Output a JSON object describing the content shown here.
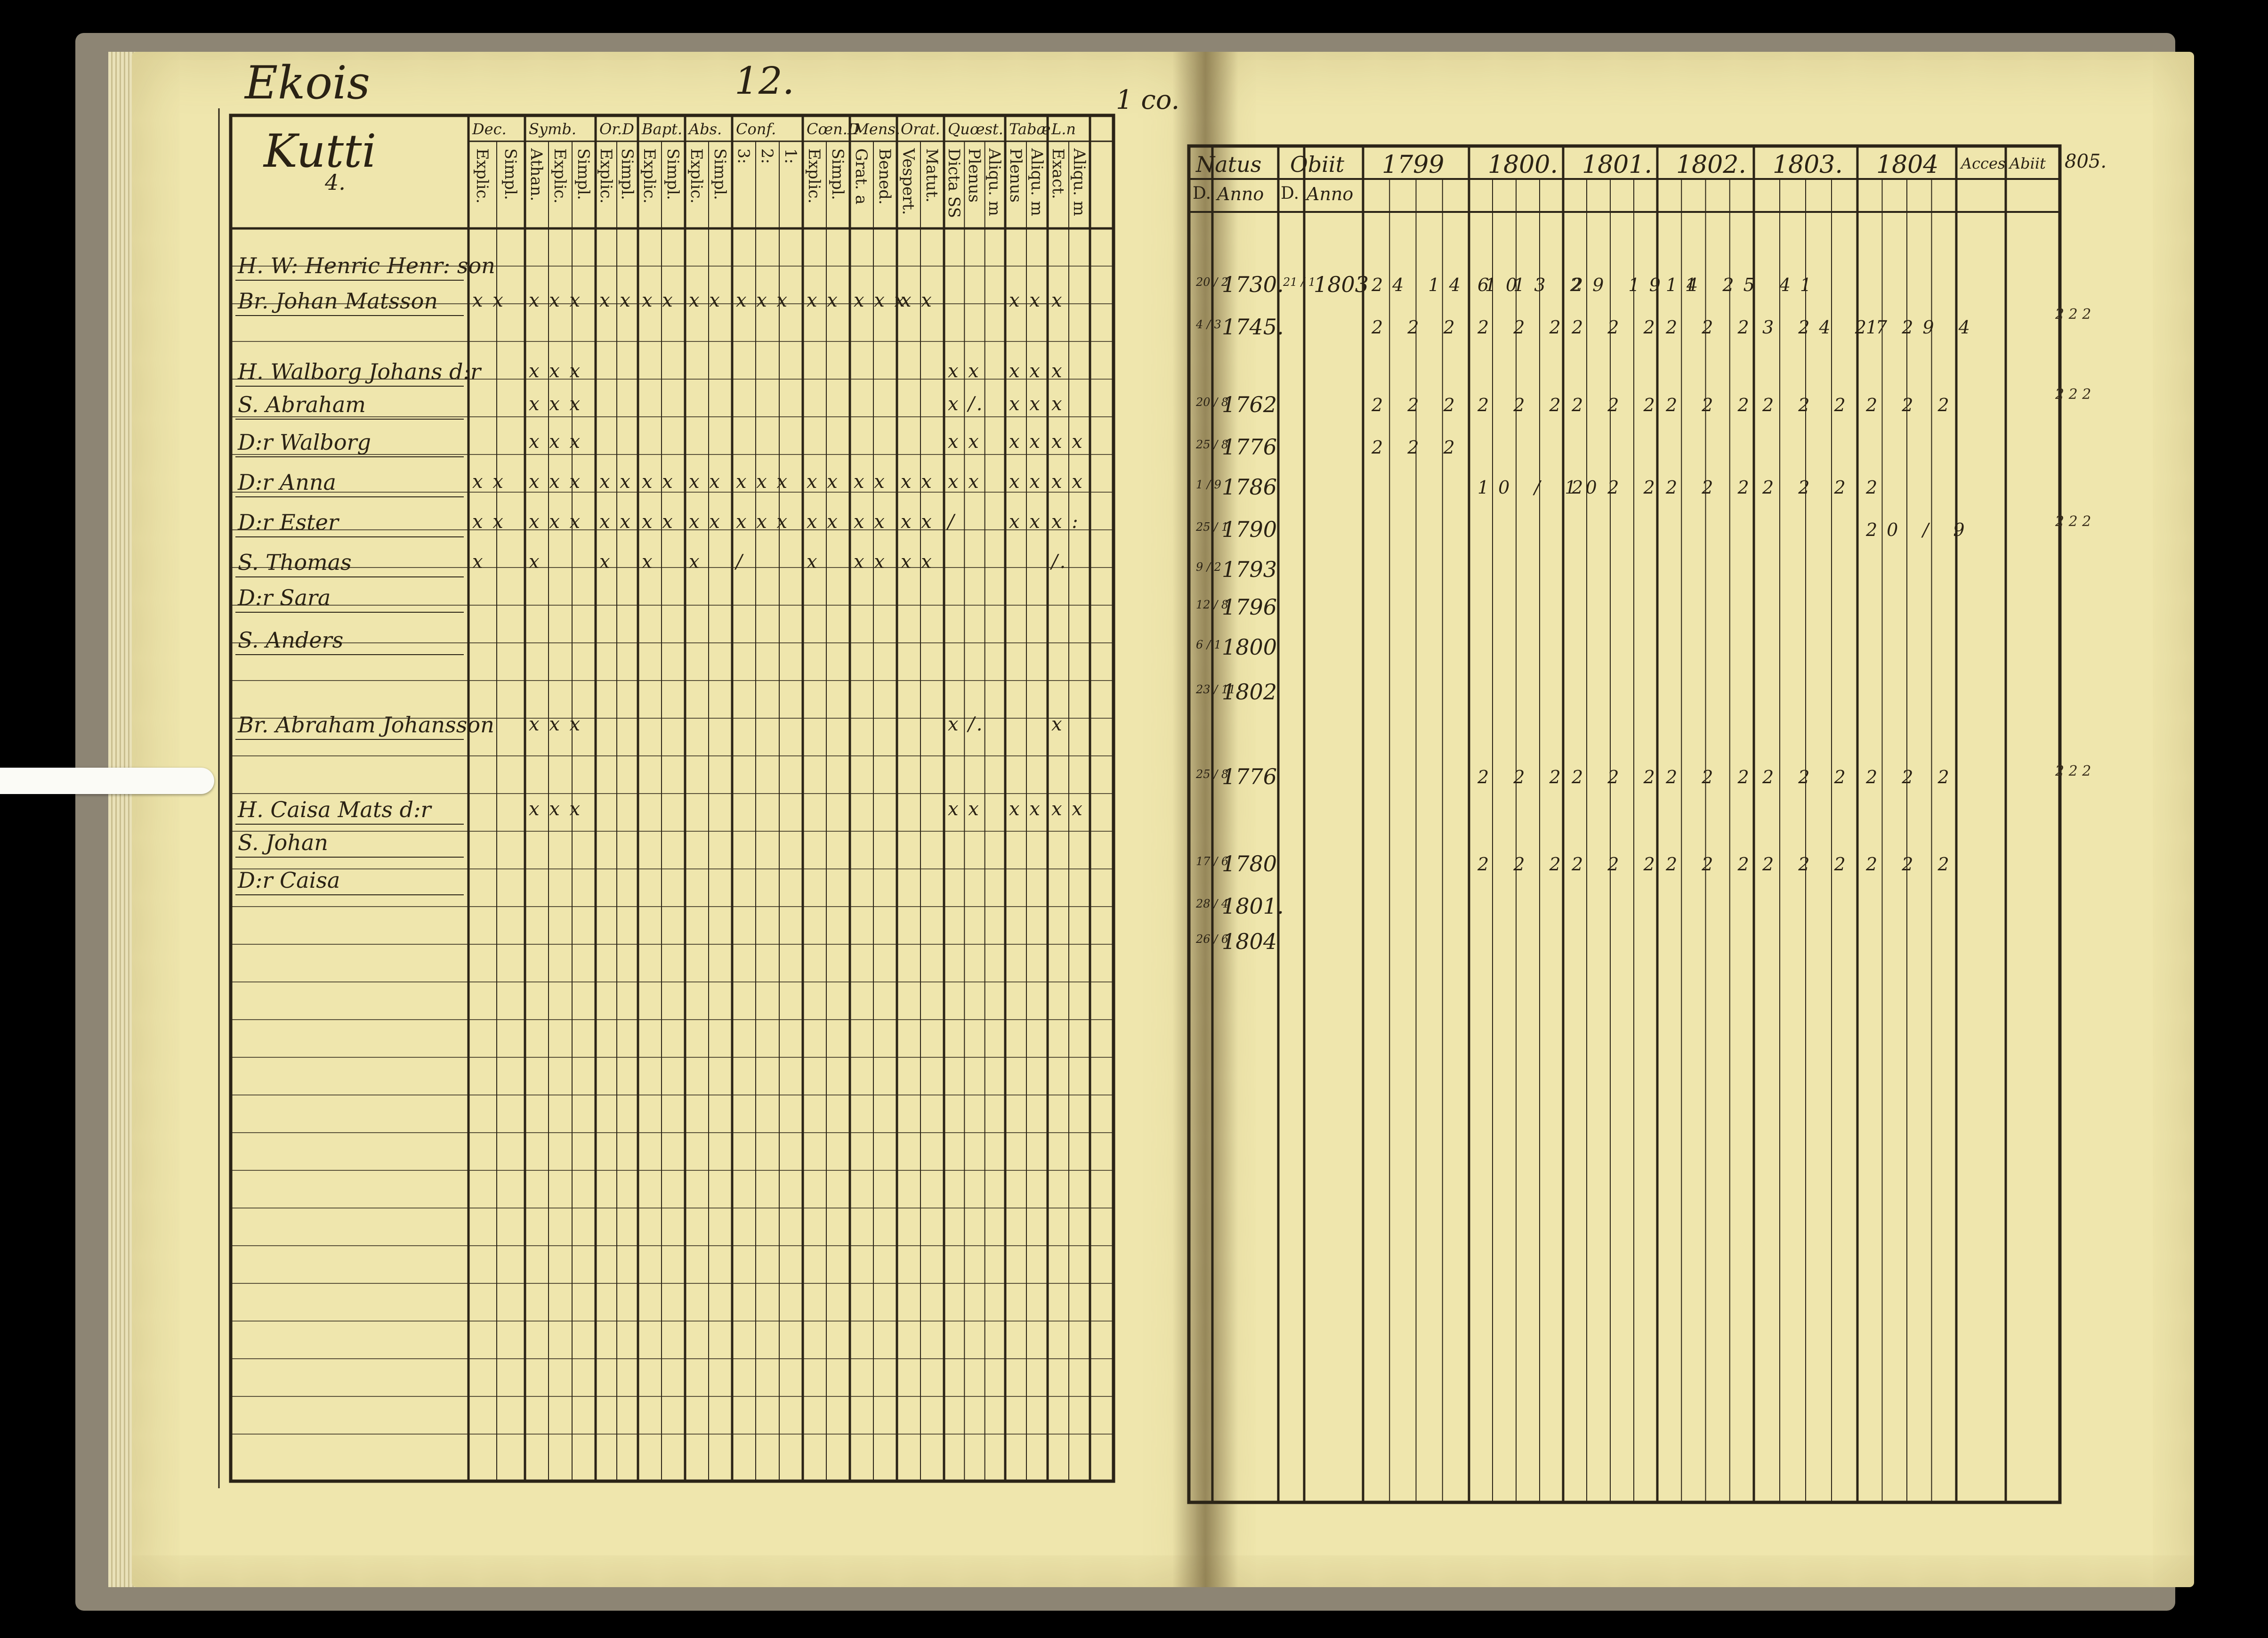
{
  "left_page": {
    "village": "Ekois",
    "page_number": "12.",
    "homestead": "Kutti",
    "homestead_number": "4.",
    "column_headers": [
      {
        "top": "Dec.",
        "sub": [
          "Explic.",
          "Simpl."
        ]
      },
      {
        "top": "Symb.",
        "sub": [
          "Athan.",
          "Explic.",
          "Simpl."
        ]
      },
      {
        "top": "Or.D",
        "sub": [
          "Explic.",
          "Simpl."
        ]
      },
      {
        "top": "Bapt.",
        "sub": [
          "Explic.",
          "Simpl."
        ]
      },
      {
        "top": "Abs.",
        "sub": [
          "Explic.",
          "Simpl."
        ]
      },
      {
        "top": "Conf.",
        "sub": [
          "3:",
          "2:",
          "1:"
        ]
      },
      {
        "top": "Cœn.D",
        "sub": [
          "Explic.",
          "Simpl."
        ]
      },
      {
        "top": "Mens.",
        "sub": [
          "Grat. a",
          "Bened."
        ]
      },
      {
        "top": "Orat.",
        "sub": [
          "Vespert.",
          "Matut."
        ]
      },
      {
        "top": "Quœst.",
        "sub": [
          "Dicta SS",
          "Plenus",
          "Aliqu. m"
        ]
      },
      {
        "top": "Tabæ",
        "sub": [
          "Plenus",
          "Aliqu. m"
        ]
      },
      {
        "top": "L.n",
        "sub": [
          "Exact.",
          "Aliqu. m"
        ]
      }
    ],
    "rows": [
      {
        "name": "H. W: Henric Henr: son",
        "marks": [
          "",
          "",
          "",
          "",
          "",
          "",
          "",
          "",
          "",
          "",
          "",
          ""
        ]
      },
      {
        "name": "Br. Johan Matsson",
        "marks": [
          "x x",
          "x x x",
          "x x",
          "x x",
          "x x",
          "x x x",
          "x x",
          "x x x",
          "x x",
          "",
          "x x",
          "x"
        ]
      },
      {
        "name": "H. Walborg Johans d:r",
        "marks": [
          "",
          "x x x",
          "",
          "",
          "",
          "",
          "",
          "",
          "",
          "x x",
          "x x",
          "x"
        ]
      },
      {
        "name": "S. Abraham",
        "marks": [
          "",
          "x x x",
          "",
          "",
          "",
          "",
          "",
          "",
          "",
          "x /.",
          "x x",
          "x"
        ]
      },
      {
        "name": "D:r Walborg",
        "marks": [
          "",
          "x x x",
          "",
          "",
          "",
          "",
          "",
          "",
          "",
          "x x",
          "x x",
          "x x"
        ]
      },
      {
        "name": "D:r Anna",
        "marks": [
          "x x",
          "x x x",
          "x x",
          "x x",
          "x x",
          "x x x",
          "x x",
          "x x",
          "x x",
          "x x",
          "x x",
          "x x"
        ]
      },
      {
        "name": "D:r Ester",
        "marks": [
          "x x",
          "x x x",
          "x x",
          "x x",
          "x x",
          "x x x",
          "x x",
          "x x",
          "x x",
          "/",
          "x x",
          "x :"
        ]
      },
      {
        "name": "S. Thomas",
        "marks": [
          "x",
          "x",
          "x",
          "x",
          "x",
          "/",
          "x",
          "x x",
          "x x",
          "",
          "",
          "/."
        ]
      },
      {
        "name": "D:r Sara",
        "marks": [
          "",
          "",
          "",
          "",
          "",
          "",
          "",
          "",
          "",
          "",
          "",
          ""
        ]
      },
      {
        "name": "S. Anders",
        "marks": [
          "",
          "",
          "",
          "",
          "",
          "",
          "",
          "",
          "",
          "",
          "",
          ""
        ]
      },
      {
        "name": "Br. Abraham Johansson",
        "marks": [
          "",
          "x x x",
          "",
          "",
          "",
          "",
          "",
          "",
          "",
          "x /.",
          "",
          "x"
        ]
      },
      {
        "name": "H. Caisa Mats d:r",
        "marks": [
          "",
          "x x x",
          "",
          "",
          "",
          "",
          "",
          "",
          "",
          "x x",
          "x x",
          "x x"
        ]
      },
      {
        "name": "S. Johan",
        "marks": [
          "",
          "",
          "",
          "",
          "",
          "",
          "",
          "",
          "",
          "",
          "",
          ""
        ]
      },
      {
        "name": "D:r Caisa",
        "marks": [
          "",
          "",
          "",
          "",
          "",
          "",
          "",
          "",
          "",
          "",
          "",
          ""
        ]
      }
    ]
  },
  "right_page": {
    "corner_note": "1 co.",
    "headers": {
      "natus": "Natus",
      "obiit": "Obiit",
      "years": [
        "1799",
        "1800.",
        "1801.",
        "1802.",
        "1803.",
        "1804"
      ],
      "acces": "Acces",
      "abiit": "Abiit",
      "d": "D.",
      "anno": "Anno"
    },
    "rows": [
      {
        "day": "20 / 2",
        "born": "1730.",
        "obiit_day": "21 / 1",
        "obiit_year": "1803",
        "marks": [
          "24 14 10",
          "6 13 2",
          "29 19 1",
          "14 25 41",
          "",
          ""
        ]
      },
      {
        "day": "4 / 3",
        "born": "1745.",
        "marks": [
          "2 2 2",
          "2 2 2",
          "2 2 2",
          "2 2 2",
          "3 24 27",
          "1 29 4"
        ]
      },
      {
        "day": "20 / 8",
        "born": "1762",
        "marks": [
          "2 2 2",
          "2 2 2",
          "2 2 2",
          "2 2 2",
          "2 2 2",
          "2 2 2"
        ]
      },
      {
        "day": "25 / 8",
        "born": "1776",
        "marks": [
          "2 2 2",
          "",
          "",
          "",
          "",
          ""
        ]
      },
      {
        "day": "1 / 9",
        "born": "1786",
        "marks": [
          "",
          "10 / 10",
          "2 2 2",
          "2 2 2",
          "2 2 2",
          "2"
        ]
      },
      {
        "day": "25 / 1",
        "born": "1790",
        "marks": [
          "",
          "",
          "",
          "",
          "",
          "20 / 9"
        ]
      },
      {
        "day": "9 / 2",
        "born": "1793",
        "marks": [
          "",
          "",
          "",
          "",
          "",
          ""
        ]
      },
      {
        "day": "12 / 8",
        "born": "1796",
        "marks": [
          "",
          "",
          "",
          "",
          "",
          ""
        ]
      },
      {
        "day": "6 / 1",
        "born": "1800",
        "marks": [
          "",
          "",
          "",
          "",
          "",
          ""
        ]
      },
      {
        "day": "23 / 11",
        "born": "1802",
        "marks": [
          "",
          "",
          "",
          "",
          "",
          ""
        ]
      },
      {
        "day": "25 / 8",
        "born": "1776",
        "marks": [
          "",
          "2 2 2",
          "2 2 2",
          "2 2 2",
          "2 2 2",
          "2 2 2"
        ]
      },
      {
        "day": "17 / 6",
        "born": "1780",
        "marks": [
          "",
          "2 2 2",
          "2 2 2",
          "2 2 2",
          "2 2 2",
          "2 2 2"
        ]
      },
      {
        "day": "28 / 4",
        "born": "1801.",
        "marks": [
          "",
          "",
          "",
          "",
          "",
          ""
        ]
      },
      {
        "day": "26 / 6",
        "born": "1804",
        "marks": [
          "",
          "",
          "",
          "",
          "",
          ""
        ]
      }
    ],
    "margin_notes": [
      "805.",
      "2 2 2",
      "2 2 2",
      "2 2 2",
      "2 2 2"
    ]
  }
}
